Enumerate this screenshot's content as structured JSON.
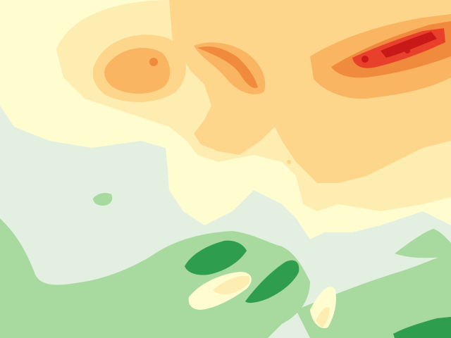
{
  "map": {
    "kind": "elevation-colored terrain map",
    "legend_shown": false,
    "labels_shown": false,
    "palette": {
      "lowland_pale": "#e3f0e1",
      "green_light": "#a8d99e",
      "green_mid": "#7fc77a",
      "green_dark": "#2e9e4e",
      "cream": "#fffdd0",
      "yellow_pale": "#fdedb0",
      "orange_light": "#fdd68c",
      "orange_mid": "#f9b562",
      "orange_dark": "#f08a3c",
      "red": "#e8402a",
      "dark_red": "#c81818"
    }
  }
}
